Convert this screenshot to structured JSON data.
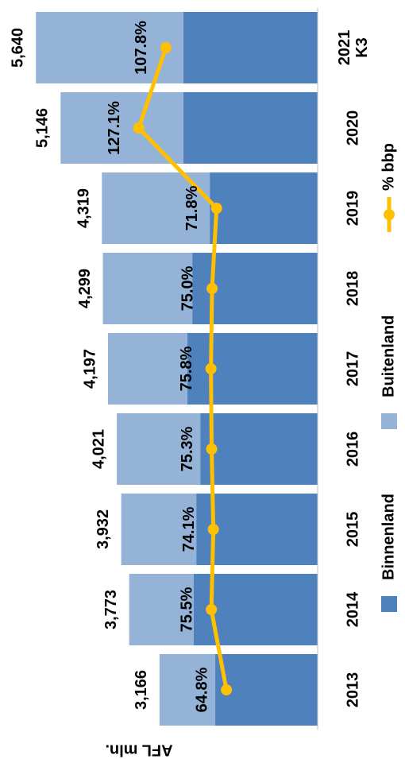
{
  "chart_data": {
    "type": "bar",
    "stacked": true,
    "y_label": "AFL mln.",
    "categories": [
      "2013",
      "2014",
      "2015",
      "2016",
      "2017",
      "2018",
      "2019",
      "2020",
      "2021 K3"
    ],
    "series": [
      {
        "name": "Binnenland",
        "color": "#4f81bd",
        "values": [
          2050,
          2480,
          2430,
          2350,
          2610,
          2510,
          2160,
          2690,
          2690
        ]
      },
      {
        "name": "Buitenland",
        "color": "#95b3d7",
        "values": [
          1116,
          1293,
          1502,
          1671,
          1587,
          1789,
          2159,
          2456,
          2950
        ]
      },
      {
        "name": "% bbp",
        "type": "line",
        "axis": "y2",
        "color": "#ffc000",
        "values": [
          64.8,
          75.5,
          74.1,
          75.3,
          75.8,
          75.0,
          71.8,
          127.1,
          107.8
        ],
        "value_labels": [
          "64.8%",
          "75.5%",
          "74.1%",
          "75.3%",
          "75.8%",
          "75.0%",
          "71.8%",
          "127.1%",
          "107.8%"
        ]
      }
    ],
    "totals": [
      3166,
      3773,
      3932,
      4021,
      4197,
      4299,
      4319,
      5146,
      5640
    ],
    "total_labels": [
      "3,166",
      "3,773",
      "3,932",
      "4,021",
      "4,197",
      "4,299",
      "4,319",
      "5,146",
      "5,640"
    ],
    "ylim": [
      0,
      6200
    ],
    "y2lim": [
      0,
      220
    ],
    "rotated": true
  }
}
